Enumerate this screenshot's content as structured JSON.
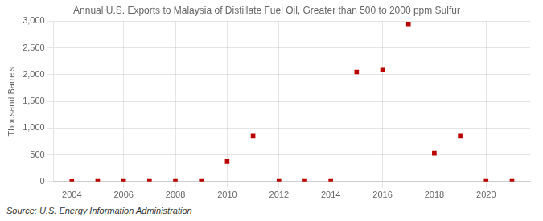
{
  "chart_data": {
    "type": "scatter",
    "title": "Annual U.S. Exports to Malaysia of Distillate Fuel Oil, Greater than 500 to 2000 ppm Sulfur",
    "ylabel": "Thousand Barrels",
    "source": "Source: U.S. Energy Information Administration",
    "x": [
      2004,
      2005,
      2006,
      2007,
      2008,
      2009,
      2010,
      2011,
      2012,
      2013,
      2014,
      2015,
      2016,
      2017,
      2018,
      2019,
      2020,
      2021
    ],
    "values": [
      0,
      3,
      3,
      3,
      3,
      3,
      375,
      850,
      3,
      3,
      3,
      2050,
      2100,
      2950,
      530,
      850,
      3,
      3
    ],
    "color": "#bb0000",
    "marker": "square",
    "xlim": [
      2003.3,
      2021.7
    ],
    "xticks": [
      2004,
      2006,
      2008,
      2010,
      2012,
      2014,
      2016,
      2018,
      2020
    ],
    "ylim": [
      0,
      3000
    ],
    "yticks": [
      0,
      500,
      {
        "value": 1000,
        "label": "1,000"
      },
      {
        "value": 1500,
        "label": "1,500"
      },
      {
        "value": 2000,
        "label": "2,000"
      },
      {
        "value": 2500,
        "label": "2,500"
      },
      {
        "value": 3000,
        "label": "3,000"
      }
    ],
    "grid": true
  }
}
